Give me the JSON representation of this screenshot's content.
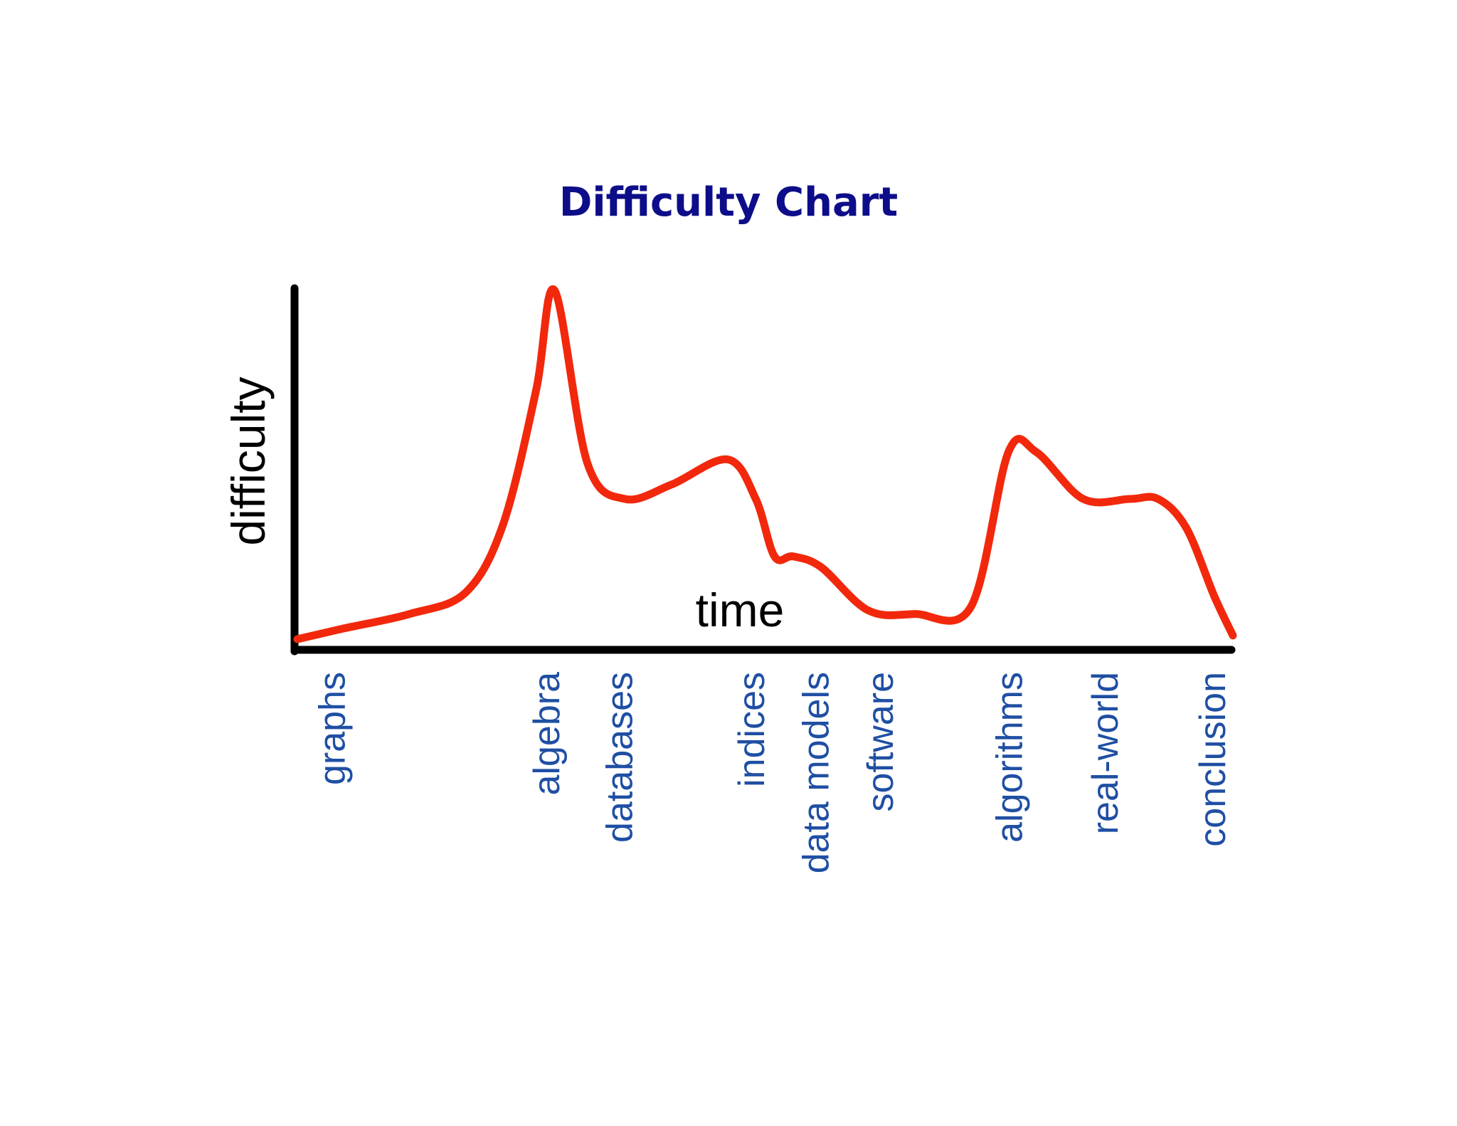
{
  "colors": {
    "title": "#0d0d8a",
    "axis": "#000000",
    "curve": "#f2280c",
    "tick_label": "#1f4fa3",
    "background": "#ffffff"
  },
  "chart_data": {
    "type": "line",
    "title": "Difficulty Chart",
    "xlabel": "time",
    "ylabel": "difficulty",
    "xlim": [
      0,
      100
    ],
    "ylim": [
      0,
      100
    ],
    "grid": false,
    "legend": "none",
    "categories": [
      "graphs",
      "algebra",
      "databases",
      "indices",
      "data models",
      "software",
      "algorithms",
      "real-world",
      "conclusion"
    ],
    "category_x": [
      3.7,
      26.6,
      34.4,
      48.5,
      55.4,
      62.3,
      76.1,
      86.3,
      97.8
    ],
    "series": [
      {
        "x": [
          0,
          5,
          12,
          18,
          22,
          25.5,
          27.5,
          31,
          35,
          40,
          46,
          49,
          51,
          53,
          56,
          61,
          66,
          72,
          76,
          79,
          84,
          89,
          92,
          95,
          98,
          100
        ],
        "values": [
          1,
          4,
          8,
          14,
          33,
          70,
          98,
          50,
          40,
          44,
          51,
          40,
          24,
          24,
          21,
          9,
          8,
          10,
          53,
          53,
          40,
          40,
          40,
          32,
          13,
          2
        ]
      }
    ]
  }
}
